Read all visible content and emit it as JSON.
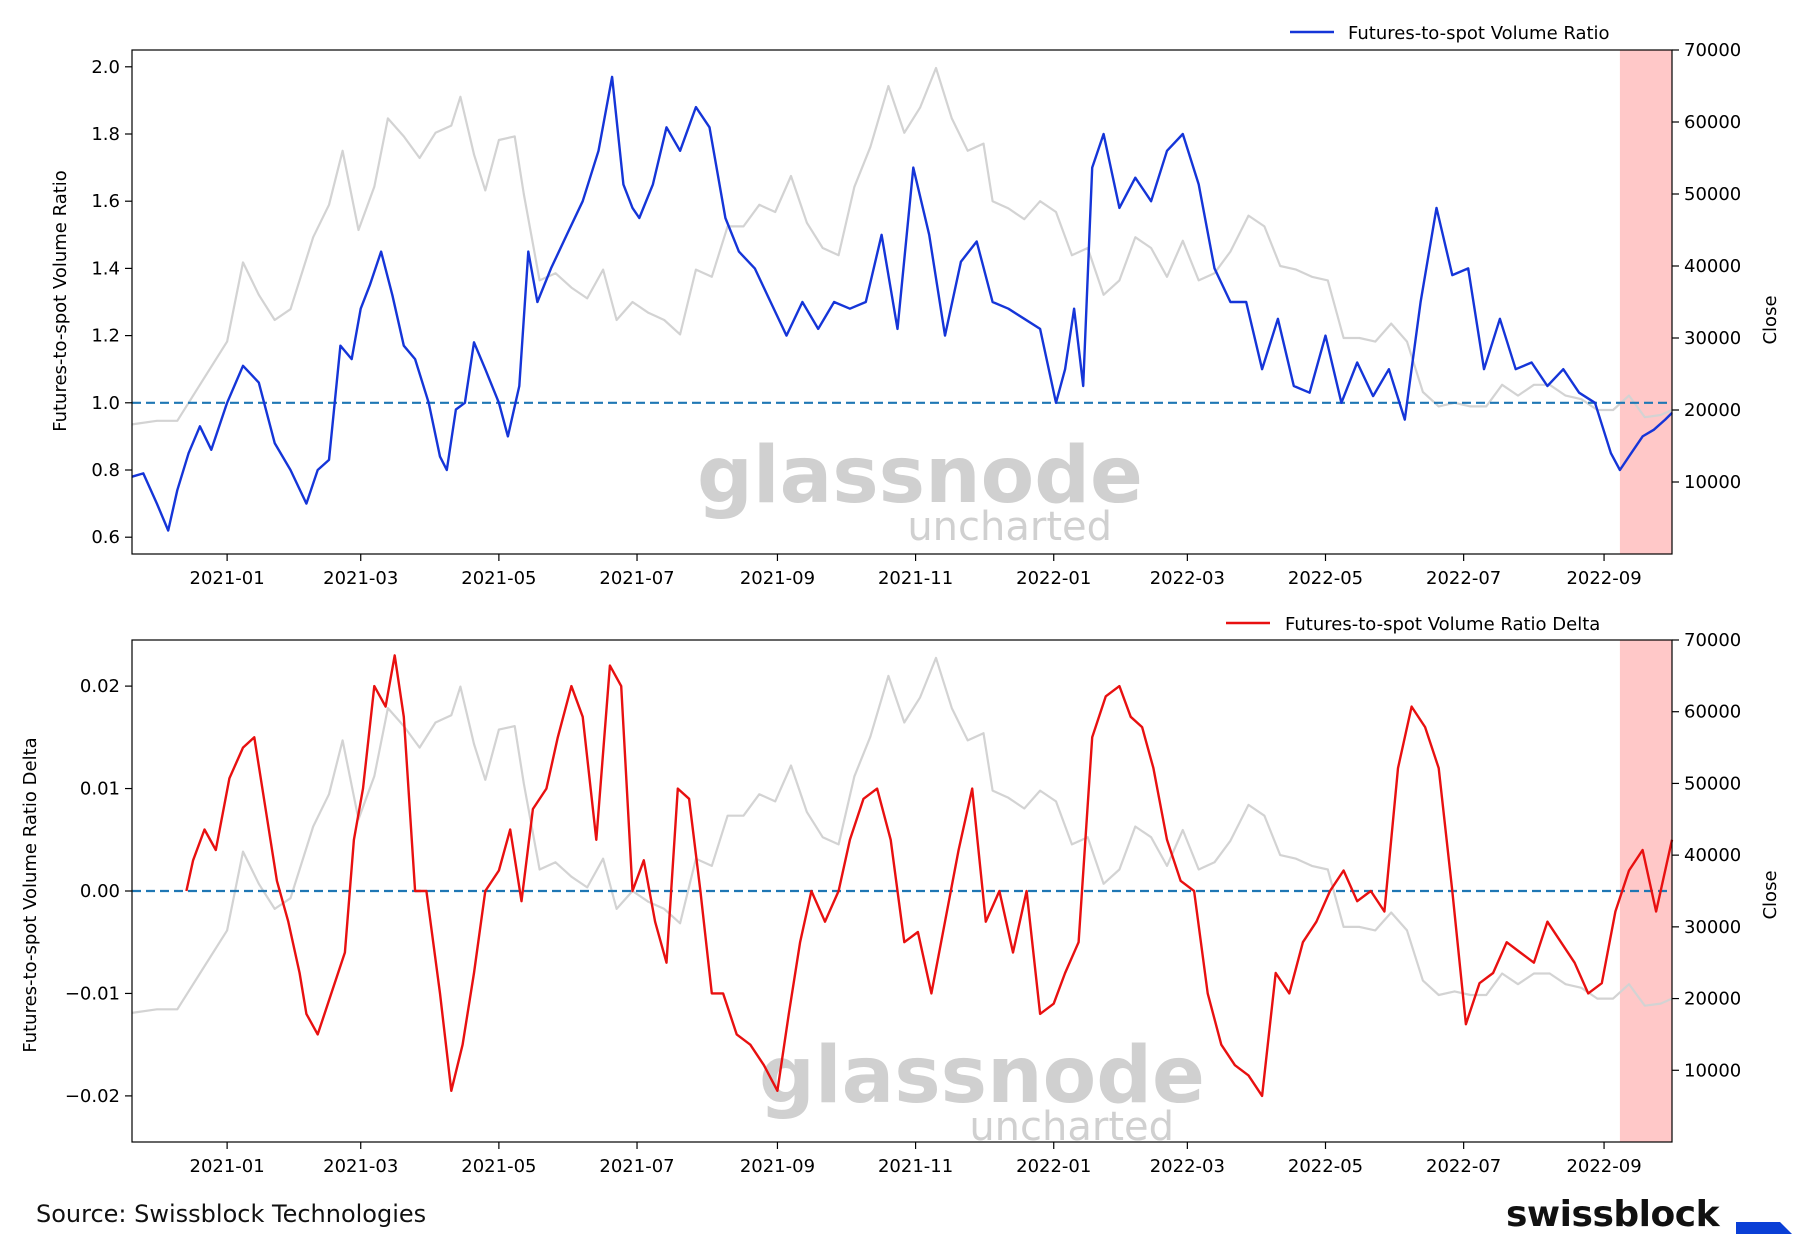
{
  "footer": {
    "source": "Source: Swissblock Technologies",
    "brand": "swissblock"
  },
  "watermark": {
    "main": "glassnode",
    "sub": "uncharted"
  },
  "colors": {
    "ratio": "#1535d8",
    "delta": "#e81010",
    "close": "#d3d3d3",
    "baseline": "#1f77b4",
    "highlight": "#ffc8c8",
    "brand_mark": "#0a3fd6"
  },
  "chart_data": [
    {
      "type": "line",
      "ylabel": "Futures-to-spot Volume Ratio",
      "y2label": "Close",
      "legend": "Futures-to-spot Volume Ratio",
      "legend_position": "top-right",
      "xlim": [
        "2020-11-20",
        "2022-10-01"
      ],
      "ylim": [
        0.55,
        2.05
      ],
      "y2lim": [
        0,
        70000
      ],
      "x_ticks": [
        "2021-01",
        "2021-03",
        "2021-05",
        "2021-07",
        "2021-09",
        "2021-11",
        "2022-01",
        "2022-03",
        "2022-05",
        "2022-07",
        "2022-09"
      ],
      "y_ticks": [
        "0.6",
        "0.8",
        "1.0",
        "1.2",
        "1.4",
        "1.6",
        "1.8",
        "2.0"
      ],
      "y2_ticks": [
        "10000",
        "20000",
        "30000",
        "40000",
        "50000",
        "60000",
        "70000"
      ],
      "baseline": 1.0,
      "highlight": [
        "2022-09-08",
        "2022-10-01"
      ],
      "series": [
        {
          "name": "Futures-to-spot Volume Ratio",
          "axis": "left",
          "x": [
            "2020-11-20",
            "2020-11-25",
            "2020-12-01",
            "2020-12-06",
            "2020-12-10",
            "2020-12-15",
            "2020-12-20",
            "2020-12-25",
            "2021-01-01",
            "2021-01-08",
            "2021-01-15",
            "2021-01-22",
            "2021-01-29",
            "2021-02-05",
            "2021-02-10",
            "2021-02-15",
            "2021-02-20",
            "2021-02-25",
            "2021-03-01",
            "2021-03-05",
            "2021-03-10",
            "2021-03-15",
            "2021-03-20",
            "2021-03-25",
            "2021-03-31",
            "2021-04-05",
            "2021-04-08",
            "2021-04-12",
            "2021-04-16",
            "2021-04-20",
            "2021-04-25",
            "2021-05-01",
            "2021-05-05",
            "2021-05-10",
            "2021-05-14",
            "2021-05-18",
            "2021-05-24",
            "2021-05-31",
            "2021-06-07",
            "2021-06-14",
            "2021-06-20",
            "2021-06-25",
            "2021-06-29",
            "2021-07-02",
            "2021-07-08",
            "2021-07-14",
            "2021-07-20",
            "2021-07-27",
            "2021-08-02",
            "2021-08-09",
            "2021-08-15",
            "2021-08-22",
            "2021-08-29",
            "2021-09-05",
            "2021-09-12",
            "2021-09-19",
            "2021-09-26",
            "2021-10-03",
            "2021-10-10",
            "2021-10-17",
            "2021-10-24",
            "2021-10-31",
            "2021-11-07",
            "2021-11-14",
            "2021-11-21",
            "2021-11-28",
            "2021-12-05",
            "2021-12-12",
            "2021-12-19",
            "2021-12-26",
            "2022-01-02",
            "2022-01-06",
            "2022-01-10",
            "2022-01-14",
            "2022-01-18",
            "2022-01-23",
            "2022-01-30",
            "2022-02-06",
            "2022-02-13",
            "2022-02-20",
            "2022-02-27",
            "2022-03-06",
            "2022-03-13",
            "2022-03-20",
            "2022-03-27",
            "2022-04-03",
            "2022-04-10",
            "2022-04-17",
            "2022-04-24",
            "2022-05-01",
            "2022-05-08",
            "2022-05-15",
            "2022-05-22",
            "2022-05-29",
            "2022-06-05",
            "2022-06-12",
            "2022-06-19",
            "2022-06-26",
            "2022-07-03",
            "2022-07-10",
            "2022-07-17",
            "2022-07-24",
            "2022-07-31",
            "2022-08-07",
            "2022-08-14",
            "2022-08-21",
            "2022-08-28",
            "2022-09-04",
            "2022-09-08",
            "2022-09-13",
            "2022-09-18",
            "2022-09-23",
            "2022-09-28",
            "2022-10-01"
          ],
          "y": [
            0.78,
            0.79,
            0.7,
            0.62,
            0.74,
            0.85,
            0.93,
            0.86,
            1.0,
            1.11,
            1.06,
            0.88,
            0.8,
            0.7,
            0.8,
            0.83,
            1.17,
            1.13,
            1.28,
            1.35,
            1.45,
            1.32,
            1.17,
            1.13,
            1.0,
            0.84,
            0.8,
            0.98,
            1.0,
            1.18,
            1.1,
            1.0,
            0.9,
            1.05,
            1.45,
            1.3,
            1.4,
            1.5,
            1.6,
            1.75,
            1.97,
            1.65,
            1.58,
            1.55,
            1.65,
            1.82,
            1.75,
            1.88,
            1.82,
            1.55,
            1.45,
            1.4,
            1.3,
            1.2,
            1.3,
            1.22,
            1.3,
            1.28,
            1.3,
            1.5,
            1.22,
            1.7,
            1.5,
            1.2,
            1.42,
            1.48,
            1.3,
            1.28,
            1.25,
            1.22,
            1.0,
            1.1,
            1.28,
            1.05,
            1.7,
            1.8,
            1.58,
            1.67,
            1.6,
            1.75,
            1.8,
            1.65,
            1.4,
            1.3,
            1.3,
            1.1,
            1.25,
            1.05,
            1.03,
            1.2,
            1.0,
            1.12,
            1.02,
            1.1,
            0.95,
            1.3,
            1.58,
            1.38,
            1.4,
            1.1,
            1.25,
            1.1,
            1.12,
            1.05,
            1.1,
            1.03,
            1.0,
            0.85,
            0.8,
            0.85,
            0.9,
            0.92,
            0.95,
            0.97
          ]
        },
        {
          "name": "Close",
          "axis": "right",
          "x": [
            "2020-11-20",
            "2020-12-01",
            "2020-12-10",
            "2020-12-20",
            "2021-01-01",
            "2021-01-08",
            "2021-01-15",
            "2021-01-22",
            "2021-01-29",
            "2021-02-08",
            "2021-02-15",
            "2021-02-21",
            "2021-02-28",
            "2021-03-07",
            "2021-03-13",
            "2021-03-20",
            "2021-03-27",
            "2021-04-03",
            "2021-04-10",
            "2021-04-14",
            "2021-04-20",
            "2021-04-25",
            "2021-05-01",
            "2021-05-08",
            "2021-05-12",
            "2021-05-19",
            "2021-05-26",
            "2021-06-02",
            "2021-06-09",
            "2021-06-16",
            "2021-06-22",
            "2021-06-29",
            "2021-07-06",
            "2021-07-13",
            "2021-07-20",
            "2021-07-27",
            "2021-08-03",
            "2021-08-10",
            "2021-08-17",
            "2021-08-24",
            "2021-08-31",
            "2021-09-07",
            "2021-09-14",
            "2021-09-21",
            "2021-09-28",
            "2021-10-05",
            "2021-10-12",
            "2021-10-20",
            "2021-10-27",
            "2021-11-03",
            "2021-11-10",
            "2021-11-17",
            "2021-11-24",
            "2021-12-01",
            "2021-12-05",
            "2021-12-12",
            "2021-12-19",
            "2021-12-26",
            "2022-01-02",
            "2022-01-09",
            "2022-01-16",
            "2022-01-23",
            "2022-01-30",
            "2022-02-06",
            "2022-02-13",
            "2022-02-20",
            "2022-02-27",
            "2022-03-06",
            "2022-03-13",
            "2022-03-20",
            "2022-03-28",
            "2022-04-04",
            "2022-04-11",
            "2022-04-18",
            "2022-04-25",
            "2022-05-02",
            "2022-05-09",
            "2022-05-16",
            "2022-05-23",
            "2022-05-30",
            "2022-06-06",
            "2022-06-13",
            "2022-06-20",
            "2022-06-27",
            "2022-07-04",
            "2022-07-11",
            "2022-07-18",
            "2022-07-25",
            "2022-08-01",
            "2022-08-08",
            "2022-08-15",
            "2022-08-22",
            "2022-08-29",
            "2022-09-05",
            "2022-09-12",
            "2022-09-19",
            "2022-09-26",
            "2022-10-01"
          ],
          "y": [
            18000,
            18500,
            18500,
            23500,
            29500,
            40500,
            36000,
            32500,
            34000,
            44000,
            48500,
            56000,
            45000,
            51000,
            60500,
            58000,
            55000,
            58500,
            59500,
            63500,
            55500,
            50500,
            57500,
            58000,
            50000,
            38000,
            39000,
            37000,
            35500,
            39500,
            32500,
            35000,
            33500,
            32500,
            30500,
            39500,
            38500,
            45500,
            45500,
            48500,
            47500,
            52500,
            46000,
            42500,
            41500,
            51000,
            56500,
            65000,
            58500,
            62000,
            67500,
            60500,
            56000,
            57000,
            49000,
            48000,
            46500,
            49000,
            47500,
            41500,
            42500,
            36000,
            38000,
            44000,
            42500,
            38500,
            43500,
            38000,
            39000,
            42000,
            47000,
            45500,
            40000,
            39500,
            38500,
            38000,
            30000,
            30000,
            29500,
            32000,
            29500,
            22500,
            20500,
            21000,
            20500,
            20500,
            23500,
            22000,
            23500,
            23500,
            22000,
            21500,
            20000,
            20000,
            22000,
            19000,
            19300,
            20000
          ]
        }
      ]
    },
    {
      "type": "line",
      "ylabel": "Futures-to-spot Volume Ratio Delta",
      "y2label": "Close",
      "legend": "Futures-to-spot Volume Ratio Delta",
      "legend_position": "top-right",
      "xlim": [
        "2020-11-20",
        "2022-10-01"
      ],
      "ylim": [
        -0.0245,
        0.0245
      ],
      "y2lim": [
        0,
        70000
      ],
      "x_ticks": [
        "2021-01",
        "2021-03",
        "2021-05",
        "2021-07",
        "2021-09",
        "2021-11",
        "2022-01",
        "2022-03",
        "2022-05",
        "2022-07",
        "2022-09"
      ],
      "y_ticks": [
        "−0.02",
        "−0.01",
        "0.00",
        "0.01",
        "0.02"
      ],
      "y2_ticks": [
        "10000",
        "20000",
        "30000",
        "40000",
        "50000",
        "60000",
        "70000"
      ],
      "baseline": 0.0,
      "highlight": [
        "2022-09-08",
        "2022-10-01"
      ],
      "series": [
        {
          "name": "Futures-to-spot Volume Ratio Delta",
          "axis": "left",
          "x": [
            "2020-12-14",
            "2020-12-17",
            "2020-12-22",
            "2020-12-27",
            "2021-01-02",
            "2021-01-08",
            "2021-01-13",
            "2021-01-18",
            "2021-01-23",
            "2021-01-28",
            "2021-02-02",
            "2021-02-05",
            "2021-02-10",
            "2021-02-16",
            "2021-02-22",
            "2021-02-26",
            "2021-03-02",
            "2021-03-07",
            "2021-03-12",
            "2021-03-16",
            "2021-03-20",
            "2021-03-25",
            "2021-03-30",
            "2021-04-05",
            "2021-04-10",
            "2021-04-15",
            "2021-04-20",
            "2021-04-25",
            "2021-05-01",
            "2021-05-06",
            "2021-05-11",
            "2021-05-16",
            "2021-05-22",
            "2021-05-27",
            "2021-06-02",
            "2021-06-07",
            "2021-06-13",
            "2021-06-19",
            "2021-06-24",
            "2021-06-29",
            "2021-07-04",
            "2021-07-09",
            "2021-07-14",
            "2021-07-19",
            "2021-07-24",
            "2021-07-29",
            "2021-08-03",
            "2021-08-08",
            "2021-08-14",
            "2021-08-20",
            "2021-08-26",
            "2021-09-01",
            "2021-09-06",
            "2021-09-11",
            "2021-09-16",
            "2021-09-22",
            "2021-09-28",
            "2021-10-03",
            "2021-10-09",
            "2021-10-15",
            "2021-10-21",
            "2021-10-27",
            "2021-11-02",
            "2021-11-08",
            "2021-11-14",
            "2021-11-20",
            "2021-11-26",
            "2021-12-02",
            "2021-12-08",
            "2021-12-14",
            "2021-12-20",
            "2021-12-26",
            "2022-01-01",
            "2022-01-06",
            "2022-01-12",
            "2022-01-18",
            "2022-01-24",
            "2022-01-30",
            "2022-02-04",
            "2022-02-09",
            "2022-02-14",
            "2022-02-20",
            "2022-02-26",
            "2022-03-04",
            "2022-03-10",
            "2022-03-16",
            "2022-03-22",
            "2022-03-28",
            "2022-04-03",
            "2022-04-09",
            "2022-04-15",
            "2022-04-21",
            "2022-04-27",
            "2022-05-03",
            "2022-05-09",
            "2022-05-15",
            "2022-05-21",
            "2022-05-27",
            "2022-06-02",
            "2022-06-08",
            "2022-06-14",
            "2022-06-20",
            "2022-06-26",
            "2022-07-02",
            "2022-07-08",
            "2022-07-14",
            "2022-07-20",
            "2022-07-26",
            "2022-08-01",
            "2022-08-07",
            "2022-08-13",
            "2022-08-19",
            "2022-08-25",
            "2022-08-31",
            "2022-09-06",
            "2022-09-12",
            "2022-09-18",
            "2022-09-24",
            "2022-10-01"
          ],
          "y": [
            0.0,
            0.003,
            0.006,
            0.004,
            0.011,
            0.014,
            0.015,
            0.008,
            0.001,
            -0.003,
            -0.008,
            -0.012,
            -0.014,
            -0.01,
            -0.006,
            0.005,
            0.01,
            0.02,
            0.018,
            0.023,
            0.017,
            0.0,
            0.0,
            -0.01,
            -0.0195,
            -0.015,
            -0.008,
            0.0,
            0.002,
            0.006,
            -0.001,
            0.008,
            0.01,
            0.015,
            0.02,
            0.017,
            0.005,
            0.022,
            0.02,
            0.0,
            0.003,
            -0.003,
            -0.007,
            0.01,
            0.009,
            0.0,
            -0.01,
            -0.01,
            -0.014,
            -0.015,
            -0.017,
            -0.0195,
            -0.012,
            -0.005,
            0.0,
            -0.003,
            0.0,
            0.005,
            0.009,
            0.01,
            0.005,
            -0.005,
            -0.004,
            -0.01,
            -0.003,
            0.004,
            0.01,
            -0.003,
            0.0,
            -0.006,
            0.0,
            -0.012,
            -0.011,
            -0.008,
            -0.005,
            0.015,
            0.019,
            0.02,
            0.017,
            0.016,
            0.012,
            0.005,
            0.001,
            0.0,
            -0.01,
            -0.015,
            -0.017,
            -0.018,
            -0.02,
            -0.008,
            -0.01,
            -0.005,
            -0.003,
            0.0,
            0.002,
            -0.001,
            0.0,
            -0.002,
            0.012,
            0.018,
            0.016,
            0.012,
            0.0,
            -0.013,
            -0.009,
            -0.008,
            -0.005,
            -0.006,
            -0.007,
            -0.003,
            -0.005,
            -0.007,
            -0.01,
            -0.009,
            -0.002,
            0.002,
            0.004,
            -0.002,
            0.005
          ]
        },
        {
          "name": "Close",
          "axis": "right",
          "same_as": 0
        }
      ]
    }
  ]
}
